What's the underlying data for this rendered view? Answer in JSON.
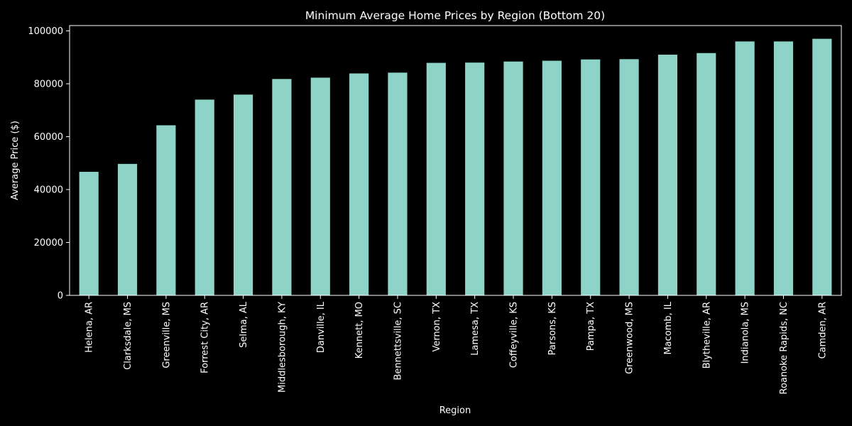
{
  "chart_data": {
    "type": "bar",
    "title": "Minimum Average Home Prices by Region (Bottom 20)",
    "xlabel": "Region",
    "ylabel": "Average Price ($)",
    "ylim": [
      0,
      102000
    ],
    "yticks": [
      0,
      20000,
      40000,
      60000,
      80000,
      100000
    ],
    "grid": false,
    "bar_color": "#8dd3c7",
    "background": "#000000",
    "text_color": "#ffffff",
    "categories": [
      "Helena, AR",
      "Clarksdale, MS",
      "Greenville, MS",
      "Forrest City, AR",
      "Selma, AL",
      "Middlesborough, KY",
      "Danville, IL",
      "Kennett, MO",
      "Bennettsville, SC",
      "Vernon, TX",
      "Lamesa, TX",
      "Coffeyville, KS",
      "Parsons, KS",
      "Pampa, TX",
      "Greenwood, MS",
      "Macomb, IL",
      "Blytheville, AR",
      "Indianola, MS",
      "Roanoke Rapids, NC",
      "Camden, AR"
    ],
    "values": [
      46700,
      49700,
      64300,
      74000,
      75900,
      81800,
      82300,
      83900,
      84200,
      87900,
      88000,
      88400,
      88700,
      89200,
      89300,
      91000,
      91600,
      96000,
      96000,
      97000
    ]
  }
}
